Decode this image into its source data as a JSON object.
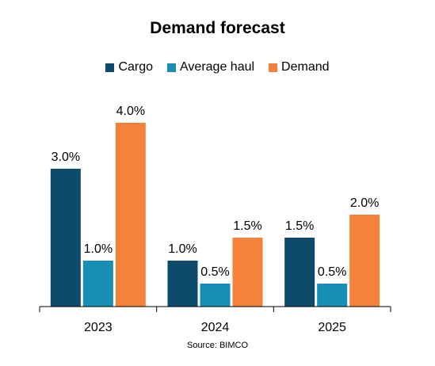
{
  "chart_data": {
    "type": "bar",
    "title": "Demand forecast",
    "categories": [
      "2023",
      "2024",
      "2025"
    ],
    "series": [
      {
        "name": "Cargo",
        "color": "#0d4a6b",
        "values": [
          3.0,
          1.0,
          1.5
        ],
        "labels": [
          "3.0%",
          "1.0%",
          "1.5%"
        ]
      },
      {
        "name": "Average haul",
        "color": "#168eb5",
        "values": [
          1.0,
          0.5,
          0.5
        ],
        "labels": [
          "1.0%",
          "0.5%",
          "0.5%"
        ]
      },
      {
        "name": "Demand",
        "color": "#f5823a",
        "values": [
          4.0,
          1.5,
          2.0
        ],
        "labels": [
          "4.0%",
          "1.5%",
          "2.0%"
        ]
      }
    ],
    "ylim": [
      0,
      4.0
    ],
    "grid": false,
    "legend_position": "top"
  },
  "source": "Source: BIMCO"
}
